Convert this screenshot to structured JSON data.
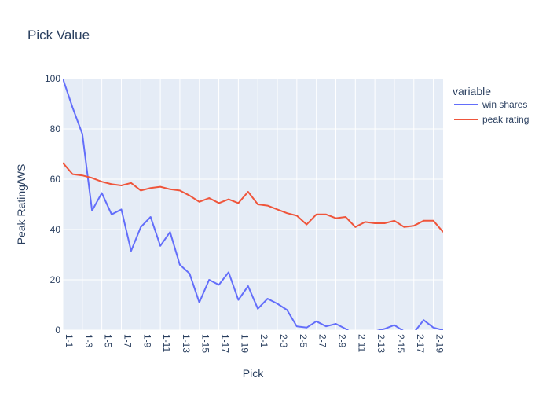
{
  "chart_data": {
    "type": "line",
    "title": "Pick Value",
    "xlabel": "Pick",
    "ylabel": "Peak Rating/WS",
    "x": [
      "1-1",
      "1-2",
      "1-3",
      "1-4",
      "1-5",
      "1-6",
      "1-7",
      "1-8",
      "1-9",
      "1-10",
      "1-11",
      "1-12",
      "1-13",
      "1-14",
      "1-15",
      "1-16",
      "1-17",
      "1-18",
      "1-19",
      "1-20",
      "2-1",
      "2-2",
      "2-3",
      "2-4",
      "2-5",
      "2-6",
      "2-7",
      "2-8",
      "2-9",
      "2-10",
      "2-11",
      "2-12",
      "2-13",
      "2-14",
      "2-15",
      "2-16",
      "2-17",
      "2-18",
      "2-19",
      "2-20"
    ],
    "x_tick_labels": [
      "1-1",
      "1-3",
      "1-5",
      "1-7",
      "1-9",
      "1-11",
      "1-13",
      "1-15",
      "1-17",
      "1-19",
      "2-1",
      "2-3",
      "2-5",
      "2-7",
      "2-9",
      "2-11",
      "2-13",
      "2-15",
      "2-17",
      "2-19"
    ],
    "ylim": [
      0,
      100
    ],
    "y_ticks": [
      0,
      20,
      40,
      60,
      80,
      100
    ],
    "grid": true,
    "legend_title": "variable",
    "legend_position": "right",
    "series": [
      {
        "name": "win shares",
        "color": "#636efa",
        "values": [
          100,
          88.5,
          78,
          47.5,
          54.5,
          46,
          48,
          31.5,
          41,
          45,
          33.5,
          39,
          26,
          22.5,
          11,
          20,
          18,
          23,
          12,
          17.5,
          8.5,
          12.5,
          10.5,
          8,
          1.5,
          1,
          3.5,
          1.5,
          2.5,
          0.5,
          -2,
          -2.5,
          -0.5,
          0.5,
          2,
          -0.5,
          -1,
          4,
          1,
          0
        ]
      },
      {
        "name": "peak rating",
        "color": "#ef553b",
        "values": [
          66.5,
          62,
          61.5,
          60.5,
          59,
          58,
          57.5,
          58.5,
          55.5,
          56.5,
          57,
          56,
          55.5,
          53.5,
          51,
          52.5,
          50.5,
          52,
          50.5,
          55,
          50,
          49.5,
          48,
          46.5,
          45.5,
          42,
          46,
          46,
          44.5,
          45,
          41,
          43,
          42.5,
          42.5,
          43.5,
          41,
          41.5,
          43.5,
          43.5,
          39
        ]
      }
    ]
  }
}
